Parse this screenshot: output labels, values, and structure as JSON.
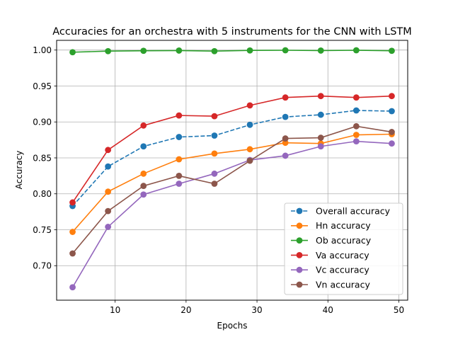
{
  "chart_data": {
    "type": "line",
    "title": "Accuracies for an orchestra with 5 instruments for the CNN with LSTM",
    "xlabel": "Epochs",
    "ylabel": "Accuracy",
    "xlim": [
      1.75,
      51.25
    ],
    "ylim": [
      0.652,
      1.0135
    ],
    "xticks": [
      10,
      20,
      30,
      40,
      50
    ],
    "yticks": [
      0.7,
      0.75,
      0.8,
      0.85,
      0.9,
      0.95,
      1.0
    ],
    "grid": true,
    "legend_position": "lower-right",
    "x": [
      4,
      9,
      14,
      19,
      24,
      29,
      34,
      39,
      44,
      49
    ],
    "series": [
      {
        "name": "Overall accuracy",
        "color": "#1f77b4",
        "dashed": true,
        "values": [
          0.783,
          0.838,
          0.866,
          0.879,
          0.881,
          0.896,
          0.907,
          0.91,
          0.916,
          0.915
        ]
      },
      {
        "name": "Hn accuracy",
        "color": "#ff7f0e",
        "dashed": false,
        "values": [
          0.747,
          0.803,
          0.828,
          0.848,
          0.856,
          0.862,
          0.871,
          0.87,
          0.882,
          0.883
        ]
      },
      {
        "name": "Ob accuracy",
        "color": "#2ca02c",
        "dashed": false,
        "values": [
          0.997,
          0.9985,
          0.999,
          0.9993,
          0.9985,
          0.9995,
          0.9997,
          0.9993,
          0.9997,
          0.999
        ]
      },
      {
        "name": "Va accuracy",
        "color": "#d62728",
        "dashed": false,
        "values": [
          0.788,
          0.861,
          0.895,
          0.909,
          0.908,
          0.923,
          0.934,
          0.936,
          0.934,
          0.936
        ]
      },
      {
        "name": "Vc accuracy",
        "color": "#9467bd",
        "dashed": false,
        "values": [
          0.67,
          0.754,
          0.799,
          0.814,
          0.828,
          0.847,
          0.853,
          0.866,
          0.873,
          0.87
        ]
      },
      {
        "name": "Vn accuracy",
        "color": "#8c564b",
        "dashed": false,
        "values": [
          0.717,
          0.776,
          0.811,
          0.825,
          0.814,
          0.846,
          0.877,
          0.878,
          0.894,
          0.886
        ]
      }
    ]
  }
}
